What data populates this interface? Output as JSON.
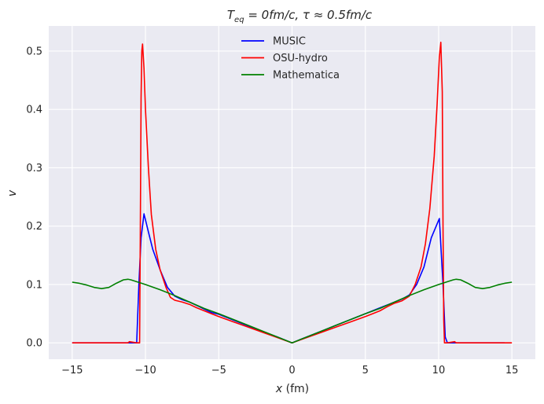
{
  "chart_data": {
    "type": "line",
    "title": "T_eq = 0fm/c, τ ≈ 0.5fm/c",
    "title_parts": {
      "t": "T",
      "sub": "eq",
      "rest": " = 0fm/c, τ ≈ 0.5fm/c"
    },
    "xlabel": "x (fm)",
    "xlabel_parts": {
      "var": "x",
      "unit": " (fm)"
    },
    "ylabel": "v",
    "xlim": [
      -16.6,
      16.6
    ],
    "ylim": [
      -0.028,
      0.543
    ],
    "xticks": [
      -15,
      -10,
      -5,
      0,
      5,
      10,
      15
    ],
    "xtick_labels": [
      "−15",
      "−10",
      "−5",
      "0",
      "5",
      "10",
      "15"
    ],
    "yticks": [
      0.0,
      0.1,
      0.2,
      0.3,
      0.4,
      0.5
    ],
    "ytick_labels": [
      "0.0",
      "0.1",
      "0.2",
      "0.3",
      "0.4",
      "0.5"
    ],
    "grid": true,
    "legend_position": "top-center",
    "series": [
      {
        "name": "MUSIC",
        "color": "#0000ff",
        "x": [
          -15.0,
          -12.0,
          -10.6,
          -10.45,
          -10.3,
          -10.1,
          -9.8,
          -9.5,
          -9.0,
          -8.5,
          -8.0,
          -7.5,
          -7.0,
          -6.5,
          -6.0,
          -5.5,
          -5.0,
          -4.0,
          -3.0,
          -2.0,
          -1.0,
          0.0,
          1.0,
          2.0,
          3.0,
          4.0,
          5.0,
          5.5,
          6.0,
          6.5,
          7.0,
          7.5,
          8.0,
          8.5,
          9.0,
          9.5,
          10.05,
          10.3,
          10.45,
          10.6,
          12.0,
          14.5
        ],
        "y": [
          0.0,
          0.0,
          0.0,
          0.1,
          0.18,
          0.221,
          0.19,
          0.16,
          0.125,
          0.095,
          0.08,
          0.074,
          0.07,
          0.064,
          0.058,
          0.052,
          0.049,
          0.039,
          0.029,
          0.019,
          0.01,
          0.0,
          0.01,
          0.02,
          0.03,
          0.04,
          0.05,
          0.055,
          0.06,
          0.065,
          0.07,
          0.075,
          0.082,
          0.1,
          0.13,
          0.18,
          0.213,
          0.1,
          0.01,
          0.0,
          0.0,
          0.0
        ]
      },
      {
        "name": "OSU-hydro",
        "color": "#ff0000",
        "x": [
          -15.0,
          -11.2,
          -11.1,
          -10.6,
          -10.4,
          -10.35,
          -10.3,
          -10.25,
          -10.2,
          -10.1,
          -10.0,
          -9.8,
          -9.6,
          -9.3,
          -9.0,
          -8.6,
          -8.3,
          -8.0,
          -7.5,
          -7.0,
          -6.5,
          -6.0,
          -5.5,
          -5.0,
          -4.0,
          -3.0,
          -2.0,
          -1.0,
          0.0,
          1.0,
          2.0,
          3.0,
          4.0,
          5.0,
          5.5,
          6.0,
          6.5,
          7.0,
          7.5,
          8.0,
          8.4,
          8.8,
          9.1,
          9.4,
          9.7,
          9.9,
          10.05,
          10.15,
          10.25,
          10.3,
          10.35,
          10.4,
          10.6,
          11.1,
          11.2,
          15.0
        ],
        "y": [
          0.0,
          0.0,
          0.002,
          0.0,
          0.0,
          0.2,
          0.42,
          0.5,
          0.512,
          0.47,
          0.4,
          0.3,
          0.22,
          0.16,
          0.125,
          0.095,
          0.078,
          0.073,
          0.07,
          0.066,
          0.06,
          0.055,
          0.05,
          0.045,
          0.036,
          0.027,
          0.018,
          0.009,
          0.0,
          0.009,
          0.018,
          0.027,
          0.036,
          0.045,
          0.05,
          0.055,
          0.062,
          0.068,
          0.072,
          0.08,
          0.1,
          0.13,
          0.17,
          0.23,
          0.32,
          0.41,
          0.49,
          0.515,
          0.43,
          0.2,
          0.04,
          0.0,
          0.0,
          0.002,
          0.0,
          0.0
        ]
      },
      {
        "name": "Mathematica",
        "color": "#008000",
        "x": [
          -15.0,
          -14.5,
          -14.0,
          -13.5,
          -13.0,
          -12.5,
          -12.0,
          -11.5,
          -11.2,
          -11.0,
          -10.5,
          -10.0,
          -9.0,
          -8.0,
          -7.0,
          -6.0,
          -5.0,
          -4.0,
          -3.0,
          -2.0,
          -1.0,
          0.0,
          1.0,
          2.0,
          3.0,
          4.0,
          5.0,
          6.0,
          7.0,
          8.0,
          9.0,
          10.0,
          10.5,
          11.0,
          11.2,
          11.5,
          12.0,
          12.5,
          13.0,
          13.5,
          14.0,
          14.5,
          15.0
        ],
        "y": [
          0.104,
          0.102,
          0.099,
          0.095,
          0.093,
          0.095,
          0.102,
          0.108,
          0.109,
          0.108,
          0.104,
          0.1,
          0.091,
          0.081,
          0.07,
          0.059,
          0.05,
          0.04,
          0.03,
          0.02,
          0.01,
          0.0,
          0.01,
          0.02,
          0.03,
          0.04,
          0.05,
          0.059,
          0.07,
          0.081,
          0.091,
          0.1,
          0.104,
          0.108,
          0.109,
          0.108,
          0.102,
          0.095,
          0.093,
          0.095,
          0.099,
          0.102,
          0.104
        ]
      }
    ]
  }
}
